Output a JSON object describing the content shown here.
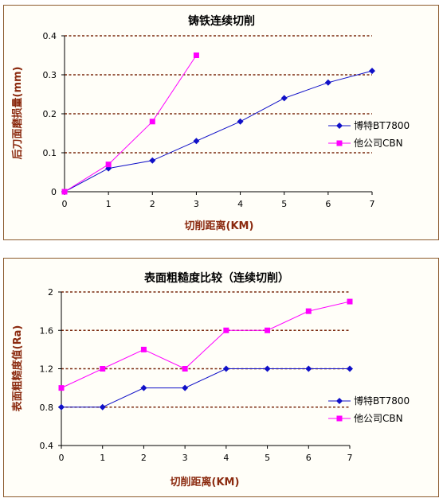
{
  "chart_data": [
    {
      "type": "line",
      "title": "铸铁连续切削",
      "xlabel": "切削距离(KM)",
      "ylabel": "后刀面磨损量(mm)",
      "categories": [
        "0",
        "1",
        "2",
        "3",
        "4",
        "5",
        "6",
        "7"
      ],
      "y_ticks": [
        "0",
        "0.1",
        "0.2",
        "0.3",
        "0.4"
      ],
      "xlim": [
        0,
        7
      ],
      "ylim": [
        0,
        0.4
      ],
      "grid": true,
      "legend_position": "right",
      "series": [
        {
          "name": "博特BT7800",
          "color": "#1010c8",
          "marker": "diamond",
          "x": [
            0,
            1,
            2,
            3,
            4,
            5,
            6,
            7
          ],
          "values": [
            0,
            0.06,
            0.08,
            0.13,
            0.18,
            0.24,
            0.28,
            0.31
          ]
        },
        {
          "name": "他公司CBN",
          "color": "#ff00ff",
          "marker": "square",
          "x": [
            0,
            1,
            2,
            3
          ],
          "values": [
            0,
            0.07,
            0.18,
            0.35
          ]
        }
      ]
    },
    {
      "type": "line",
      "title": "表面粗糙度比较（连续切削）",
      "xlabel": "切削距离(KM)",
      "ylabel": "表面粗糙度值(Ra)",
      "categories": [
        "0",
        "1",
        "2",
        "3",
        "4",
        "5",
        "6",
        "7"
      ],
      "y_ticks": [
        "0.4",
        "0.8",
        "1.2",
        "1.6",
        "2"
      ],
      "xlim": [
        0,
        7
      ],
      "ylim": [
        0.4,
        2.0
      ],
      "grid": true,
      "legend_position": "right",
      "series": [
        {
          "name": "博特BT7800",
          "color": "#1010c8",
          "marker": "diamond",
          "x": [
            0,
            1,
            2,
            3,
            4,
            5,
            6,
            7
          ],
          "values": [
            0.8,
            0.8,
            1.0,
            1.0,
            1.2,
            1.2,
            1.2,
            1.2
          ]
        },
        {
          "name": "他公司CBN",
          "color": "#ff00ff",
          "marker": "square",
          "x": [
            0,
            1,
            2,
            3,
            4,
            5,
            6,
            7
          ],
          "values": [
            1.0,
            1.2,
            1.4,
            1.2,
            1.6,
            1.6,
            1.8,
            1.9
          ]
        }
      ]
    }
  ]
}
